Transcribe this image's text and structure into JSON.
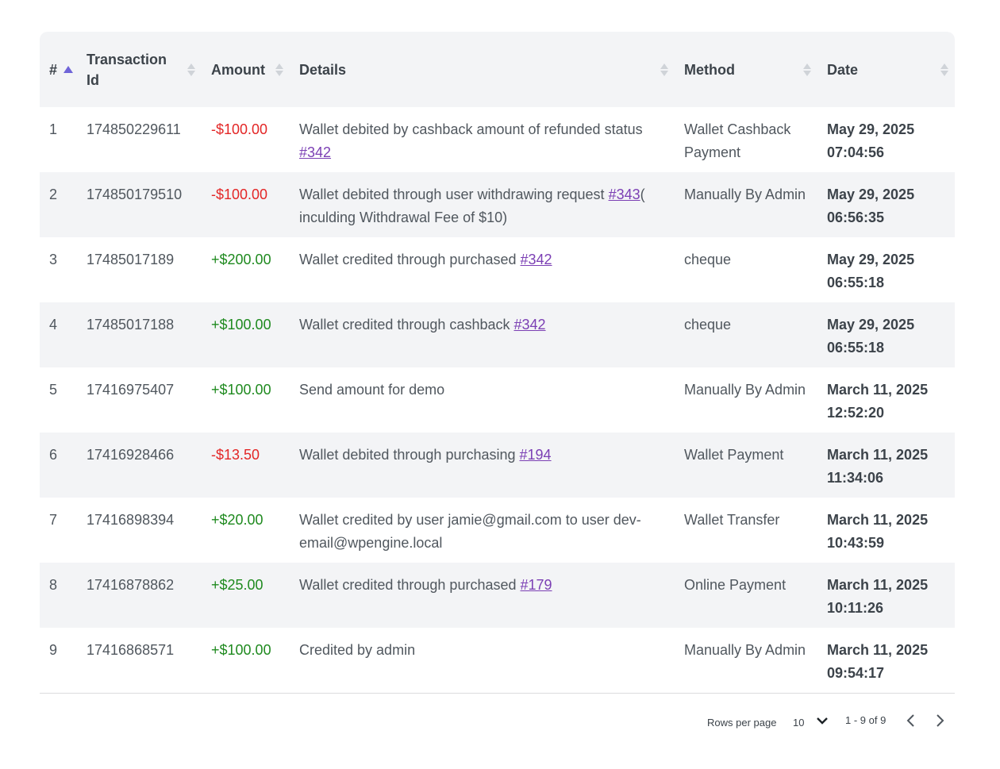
{
  "table": {
    "columns": [
      {
        "key": "num",
        "label": "#",
        "sort": "asc"
      },
      {
        "key": "txn",
        "label": "Transaction Id",
        "sort": "none"
      },
      {
        "key": "amount",
        "label": "Amount",
        "sort": "none"
      },
      {
        "key": "details",
        "label": "Details",
        "sort": "none"
      },
      {
        "key": "method",
        "label": "Method",
        "sort": "none"
      },
      {
        "key": "date",
        "label": "Date",
        "sort": "none"
      }
    ],
    "rows": [
      {
        "num": "1",
        "txn": "174850229611",
        "amount": "-$100.00",
        "type": "debit",
        "details_text": "Wallet debited by cashback amount of refunded status ",
        "details_link": "#342",
        "details_after": "",
        "method": "Wallet Cashback Payment",
        "date": "May 29, 2025",
        "time": "07:04:56"
      },
      {
        "num": "2",
        "txn": "174850179510",
        "amount": "-$100.00",
        "type": "debit",
        "details_text": "Wallet debited through user withdrawing request ",
        "details_link": "#343",
        "details_after": "( inculding Withdrawal Fee of $10)",
        "method": "Manually By Admin",
        "date": "May 29, 2025",
        "time": "06:56:35"
      },
      {
        "num": "3",
        "txn": "17485017189",
        "amount": "+$200.00",
        "type": "credit",
        "details_text": "Wallet credited through purchased ",
        "details_link": "#342",
        "details_after": "",
        "method": "cheque",
        "date": "May 29, 2025",
        "time": "06:55:18"
      },
      {
        "num": "4",
        "txn": "17485017188",
        "amount": "+$100.00",
        "type": "credit",
        "details_text": "Wallet credited through cashback ",
        "details_link": "#342",
        "details_after": "",
        "method": "cheque",
        "date": "May 29, 2025",
        "time": "06:55:18"
      },
      {
        "num": "5",
        "txn": "17416975407",
        "amount": "+$100.00",
        "type": "credit",
        "details_text": "Send amount for demo",
        "details_link": "",
        "details_after": "",
        "method": "Manually By Admin",
        "date": "March 11, 2025",
        "time": "12:52:20"
      },
      {
        "num": "6",
        "txn": "17416928466",
        "amount": "-$13.50",
        "type": "debit",
        "details_text": "Wallet debited through purchasing ",
        "details_link": "#194",
        "details_after": "",
        "method": "Wallet Payment",
        "date": "March 11, 2025",
        "time": "11:34:06"
      },
      {
        "num": "7",
        "txn": "17416898394",
        "amount": "+$20.00",
        "type": "credit",
        "details_text": "Wallet credited by user jamie@gmail.com to user dev-email@wpengine.local",
        "details_link": "",
        "details_after": "",
        "method": "Wallet Transfer",
        "date": "March 11, 2025",
        "time": "10:43:59"
      },
      {
        "num": "8",
        "txn": "17416878862",
        "amount": "+$25.00",
        "type": "credit",
        "details_text": "Wallet credited through purchased ",
        "details_link": "#179",
        "details_after": "",
        "method": "Online Payment",
        "date": "March 11, 2025",
        "time": "10:11:26"
      },
      {
        "num": "9",
        "txn": "17416868571",
        "amount": "+$100.00",
        "type": "credit",
        "details_text": "Credited by admin",
        "details_link": "",
        "details_after": "",
        "method": "Manually By Admin",
        "date": "March 11, 2025",
        "time": "09:54:17"
      }
    ]
  },
  "pagination": {
    "rows_per_page_label": "Rows per page",
    "rows_per_page_value": "10",
    "range": "1 - 9 of 9"
  },
  "colors": {
    "debit": "#e32626",
    "credit": "#1f8a1f",
    "link": "#7b3fb4",
    "sort_active": "#6f64d8"
  }
}
